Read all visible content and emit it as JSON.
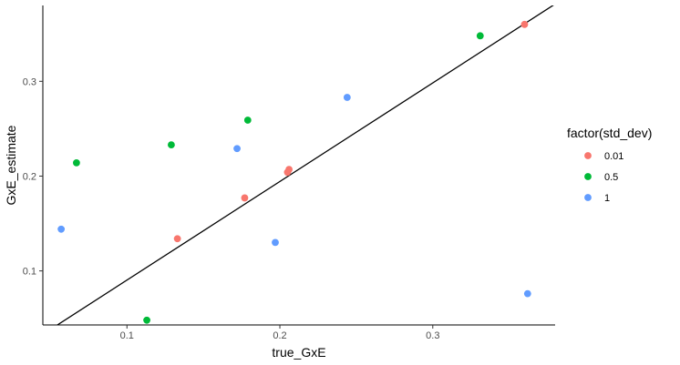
{
  "chart_data": {
    "type": "scatter",
    "xlabel": "true_GxE",
    "ylabel": "GxE_estimate",
    "xlim": [
      0.045,
      0.38
    ],
    "ylim": [
      0.043,
      0.38
    ],
    "x_ticks": [
      0.1,
      0.2,
      0.3
    ],
    "x_tick_labels": [
      "0.1",
      "0.2",
      "0.3"
    ],
    "y_ticks": [
      0.1,
      0.2,
      0.3
    ],
    "y_tick_labels": [
      "0.1",
      "0.2",
      "0.3"
    ],
    "grid": false,
    "legend": {
      "title": "factor(std_dev)",
      "placement": "right"
    },
    "reference_line": {
      "intercept": -0.0137,
      "slope": 1.04,
      "color": "#000000"
    },
    "series": [
      {
        "name": "0.01",
        "color": "#F8766D",
        "points": [
          {
            "x": 0.133,
            "y": 0.134
          },
          {
            "x": 0.177,
            "y": 0.177
          },
          {
            "x": 0.205,
            "y": 0.204
          },
          {
            "x": 0.206,
            "y": 0.207
          },
          {
            "x": 0.36,
            "y": 0.36
          }
        ]
      },
      {
        "name": "0.5",
        "color": "#00BA38",
        "points": [
          {
            "x": 0.067,
            "y": 0.214
          },
          {
            "x": 0.113,
            "y": 0.048
          },
          {
            "x": 0.129,
            "y": 0.233
          },
          {
            "x": 0.179,
            "y": 0.259
          },
          {
            "x": 0.331,
            "y": 0.348
          }
        ]
      },
      {
        "name": "1",
        "color": "#619CFF",
        "points": [
          {
            "x": 0.057,
            "y": 0.144
          },
          {
            "x": 0.172,
            "y": 0.229
          },
          {
            "x": 0.197,
            "y": 0.13
          },
          {
            "x": 0.244,
            "y": 0.283
          },
          {
            "x": 0.362,
            "y": 0.076
          }
        ]
      }
    ]
  }
}
